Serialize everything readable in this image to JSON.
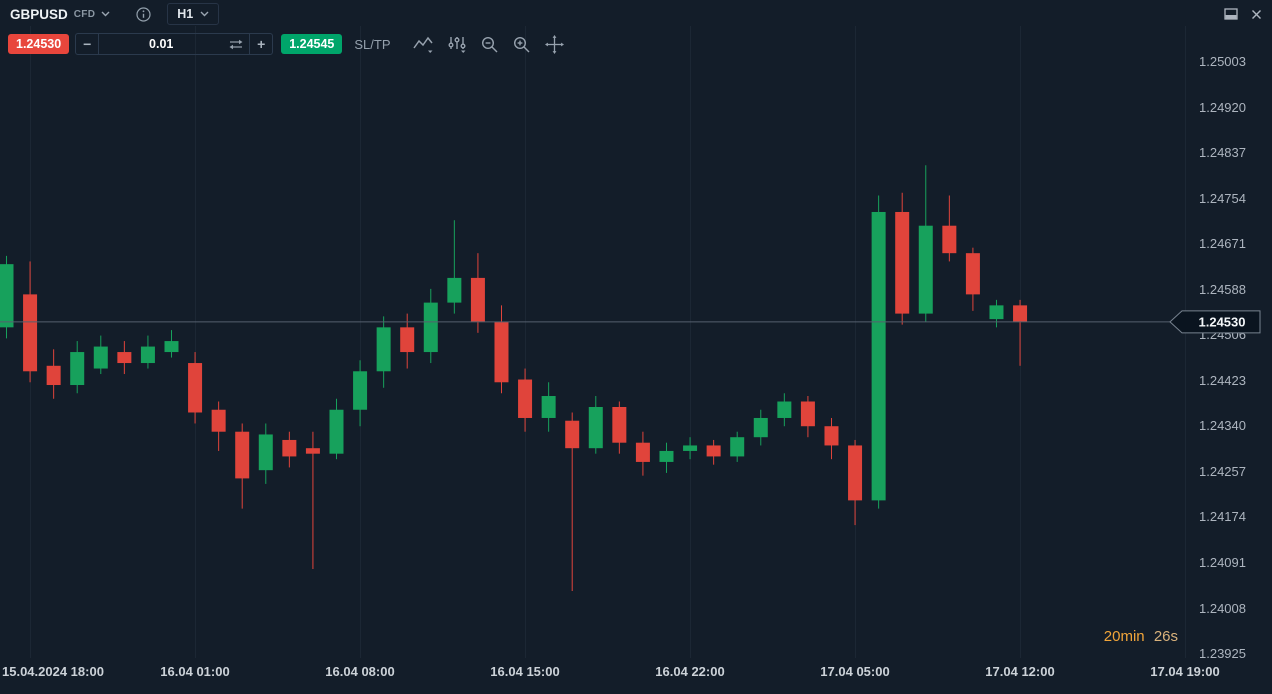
{
  "header": {
    "symbol": "GBPUSD",
    "instrument_type": "CFD",
    "timeframe": "H1"
  },
  "toolbar": {
    "bid": "1.24530",
    "ask": "1.24545",
    "volume": "0.01",
    "decrease_label": "−",
    "increase_label": "+",
    "sltp_label": "SL/TP"
  },
  "icons": [
    "chevron-down-icon",
    "info-icon",
    "panel-toggle-icon",
    "close-icon",
    "volume-swap-icon",
    "line-chart-icon",
    "indicators-icon",
    "zoom-out-icon",
    "zoom-in-icon",
    "pan-icon"
  ],
  "countdown": {
    "minutes": "20min",
    "seconds": "26s"
  },
  "price_line": {
    "price": "1.24530"
  },
  "colors": {
    "background": "#131d29",
    "grid": "#1c2734",
    "up": "#17a15c",
    "down": "#e0443b",
    "price_line": "#55606e",
    "tag_bg": "#0a141f",
    "tag_border": "#77828f",
    "bid_badge": "#e8463c",
    "ask_badge": "#00a56a",
    "countdown_orange": "#f1a53a",
    "countdown_tan": "#d9b27c"
  },
  "chart_data": {
    "type": "candlestick",
    "title": "GBPUSD H1",
    "grid": "vertical",
    "current_price": "1.24530",
    "y_axis": {
      "min": 1.23925,
      "max": 1.25003,
      "tick_step": 0.00083
    },
    "y_ticks": [
      "1.25003",
      "1.24920",
      "1.24837",
      "1.24754",
      "1.24671",
      "1.24588",
      "1.24506",
      "1.24423",
      "1.24340",
      "1.24257",
      "1.24174",
      "1.24091",
      "1.24008",
      "1.23925"
    ],
    "x_ticks": [
      "15.04.2024 18:00",
      "16.04 01:00",
      "16.04 08:00",
      "16.04 15:00",
      "16.04 22:00",
      "17.04 05:00",
      "17.04 12:00",
      "17.04 19:00"
    ],
    "candles": [
      {
        "t": "15.04 17:00",
        "o": 1.2452,
        "h": 1.2465,
        "l": 1.245,
        "c": 1.24635
      },
      {
        "t": "15.04 18:00",
        "o": 1.2458,
        "h": 1.2464,
        "l": 1.2442,
        "c": 1.2444
      },
      {
        "t": "15.04 19:00",
        "o": 1.2445,
        "h": 1.2448,
        "l": 1.2439,
        "c": 1.24415
      },
      {
        "t": "15.04 20:00",
        "o": 1.24415,
        "h": 1.24495,
        "l": 1.244,
        "c": 1.24475
      },
      {
        "t": "15.04 21:00",
        "o": 1.24445,
        "h": 1.24505,
        "l": 1.24435,
        "c": 1.24485
      },
      {
        "t": "15.04 22:00",
        "o": 1.24475,
        "h": 1.24495,
        "l": 1.24435,
        "c": 1.24455
      },
      {
        "t": "15.04 23:00",
        "o": 1.24455,
        "h": 1.24505,
        "l": 1.24445,
        "c": 1.24485
      },
      {
        "t": "16.04 00:00",
        "o": 1.24475,
        "h": 1.24515,
        "l": 1.24465,
        "c": 1.24495
      },
      {
        "t": "16.04 01:00",
        "o": 1.24455,
        "h": 1.24475,
        "l": 1.24345,
        "c": 1.24365
      },
      {
        "t": "16.04 02:00",
        "o": 1.2437,
        "h": 1.24385,
        "l": 1.24295,
        "c": 1.2433
      },
      {
        "t": "16.04 03:00",
        "o": 1.2433,
        "h": 1.24345,
        "l": 1.2419,
        "c": 1.24245
      },
      {
        "t": "16.04 04:00",
        "o": 1.2426,
        "h": 1.24345,
        "l": 1.24235,
        "c": 1.24325
      },
      {
        "t": "16.04 05:00",
        "o": 1.24315,
        "h": 1.2433,
        "l": 1.24265,
        "c": 1.24285
      },
      {
        "t": "16.04 06:00",
        "o": 1.243,
        "h": 1.2433,
        "l": 1.2408,
        "c": 1.2429
      },
      {
        "t": "16.04 07:00",
        "o": 1.2429,
        "h": 1.2439,
        "l": 1.2428,
        "c": 1.2437
      },
      {
        "t": "16.04 08:00",
        "o": 1.2437,
        "h": 1.2446,
        "l": 1.2434,
        "c": 1.2444
      },
      {
        "t": "16.04 09:00",
        "o": 1.2444,
        "h": 1.2454,
        "l": 1.2441,
        "c": 1.2452
      },
      {
        "t": "16.04 10:00",
        "o": 1.2452,
        "h": 1.24545,
        "l": 1.24445,
        "c": 1.24475
      },
      {
        "t": "16.04 11:00",
        "o": 1.24475,
        "h": 1.2459,
        "l": 1.24455,
        "c": 1.24565
      },
      {
        "t": "16.04 12:00",
        "o": 1.24565,
        "h": 1.24715,
        "l": 1.24545,
        "c": 1.2461
      },
      {
        "t": "16.04 13:00",
        "o": 1.2461,
        "h": 1.24655,
        "l": 1.2451,
        "c": 1.2453
      },
      {
        "t": "16.04 14:00",
        "o": 1.2453,
        "h": 1.2456,
        "l": 1.244,
        "c": 1.2442
      },
      {
        "t": "16.04 15:00",
        "o": 1.24425,
        "h": 1.24445,
        "l": 1.2433,
        "c": 1.24355
      },
      {
        "t": "16.04 16:00",
        "o": 1.24355,
        "h": 1.2442,
        "l": 1.2433,
        "c": 1.24395
      },
      {
        "t": "16.04 17:00",
        "o": 1.2435,
        "h": 1.24365,
        "l": 1.2404,
        "c": 1.243
      },
      {
        "t": "16.04 18:00",
        "o": 1.243,
        "h": 1.24395,
        "l": 1.2429,
        "c": 1.24375
      },
      {
        "t": "16.04 19:00",
        "o": 1.24375,
        "h": 1.24385,
        "l": 1.2429,
        "c": 1.2431
      },
      {
        "t": "16.04 20:00",
        "o": 1.2431,
        "h": 1.2433,
        "l": 1.2425,
        "c": 1.24275
      },
      {
        "t": "16.04 21:00",
        "o": 1.24275,
        "h": 1.2431,
        "l": 1.24255,
        "c": 1.24295
      },
      {
        "t": "16.04 22:00",
        "o": 1.24295,
        "h": 1.2432,
        "l": 1.2428,
        "c": 1.24305
      },
      {
        "t": "16.04 23:00",
        "o": 1.24305,
        "h": 1.24315,
        "l": 1.2427,
        "c": 1.24285
      },
      {
        "t": "17.04 00:00",
        "o": 1.24285,
        "h": 1.2433,
        "l": 1.24275,
        "c": 1.2432
      },
      {
        "t": "17.04 01:00",
        "o": 1.2432,
        "h": 1.2437,
        "l": 1.24305,
        "c": 1.24355
      },
      {
        "t": "17.04 02:00",
        "o": 1.24355,
        "h": 1.244,
        "l": 1.2434,
        "c": 1.24385
      },
      {
        "t": "17.04 03:00",
        "o": 1.24385,
        "h": 1.24395,
        "l": 1.2432,
        "c": 1.2434
      },
      {
        "t": "17.04 04:00",
        "o": 1.2434,
        "h": 1.24355,
        "l": 1.2428,
        "c": 1.24305
      },
      {
        "t": "17.04 05:00",
        "o": 1.24305,
        "h": 1.24315,
        "l": 1.2416,
        "c": 1.24205
      },
      {
        "t": "17.04 06:00",
        "o": 1.24205,
        "h": 1.2476,
        "l": 1.2419,
        "c": 1.2473
      },
      {
        "t": "17.04 07:00",
        "o": 1.2473,
        "h": 1.24765,
        "l": 1.24525,
        "c": 1.24545
      },
      {
        "t": "17.04 08:00",
        "o": 1.24545,
        "h": 1.24815,
        "l": 1.2453,
        "c": 1.24705
      },
      {
        "t": "17.04 09:00",
        "o": 1.24705,
        "h": 1.2476,
        "l": 1.2464,
        "c": 1.24655
      },
      {
        "t": "17.04 10:00",
        "o": 1.24655,
        "h": 1.24665,
        "l": 1.2455,
        "c": 1.2458
      },
      {
        "t": "17.04 11:00",
        "o": 1.24535,
        "h": 1.2457,
        "l": 1.2452,
        "c": 1.2456
      },
      {
        "t": "17.04 12:00",
        "o": 1.2456,
        "h": 1.2457,
        "l": 1.2445,
        "c": 1.2453
      }
    ]
  }
}
